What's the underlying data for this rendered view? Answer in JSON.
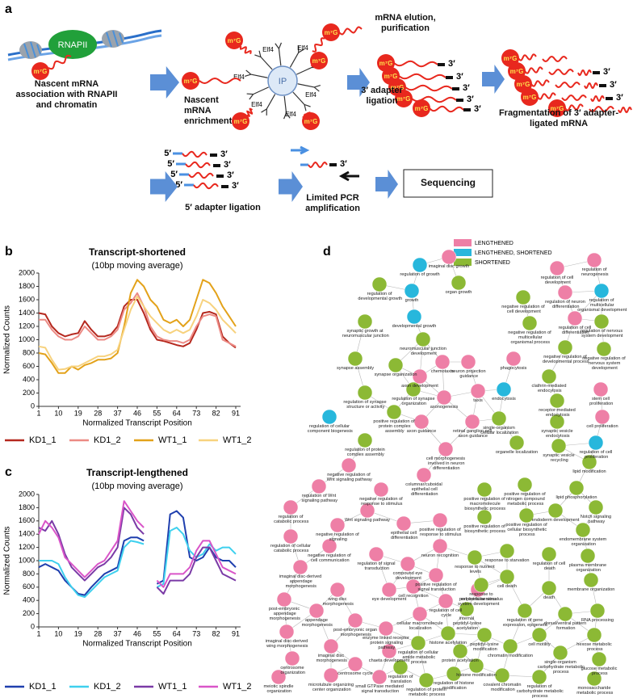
{
  "panel_labels": [
    "a",
    "b",
    "c",
    "d"
  ],
  "diagram": {
    "polymerase": "RNAPII",
    "cap": "m⁷G",
    "ip": "IP",
    "antibody": "Elf4",
    "three_prime": "3′",
    "five_prime": "5′",
    "steps": [
      "Nascent mRNA association with RNAPII and chromatin",
      "Nascent mRNA enrichment",
      "mRNA elution, purification",
      "3′ adapter ligation",
      "Fragmentation of 3′ adapter-ligated mRNA",
      "5′ adapter ligation",
      "Limited PCR amplification",
      "Sequencing"
    ]
  },
  "chart_data": [
    {
      "type": "line",
      "title": "Transcript-shortened",
      "subtitle": "(10bp moving average)",
      "x_label": "Normalized Transcript Position",
      "y_label": "Normalized Counts",
      "x": [
        1,
        4,
        7,
        10,
        13,
        16,
        19,
        22,
        25,
        28,
        31,
        34,
        37,
        40,
        43,
        46,
        49,
        52,
        55,
        58,
        61,
        64,
        67,
        70,
        73,
        76,
        79,
        82,
        85,
        88,
        91
      ],
      "xlim": [
        1,
        91
      ],
      "xticks": [
        1,
        10,
        19,
        28,
        37,
        46,
        55,
        64,
        73,
        82,
        91
      ],
      "ylim": [
        0,
        2000
      ],
      "yticks": [
        0,
        200,
        400,
        600,
        800,
        1000,
        1200,
        1400,
        1600,
        1800,
        2000
      ],
      "series": [
        {
          "name": "KD1_1",
          "color": "#b5281e",
          "values": [
            1400,
            1380,
            1200,
            1100,
            1050,
            1080,
            1100,
            1280,
            1150,
            1050,
            1050,
            1080,
            1200,
            1500,
            1600,
            1600,
            1400,
            1150,
            1000,
            980,
            950,
            920,
            900,
            950,
            1150,
            1400,
            1420,
            1380,
            1050,
            950,
            880
          ]
        },
        {
          "name": "KD1_2",
          "color": "#ec8a84",
          "values": [
            1300,
            1300,
            1150,
            1050,
            1000,
            1000,
            1050,
            1200,
            1100,
            1000,
            1000,
            1050,
            1150,
            1450,
            1550,
            1700,
            1500,
            1200,
            1050,
            1000,
            980,
            980,
            950,
            1000,
            1200,
            1350,
            1380,
            1350,
            1000,
            950,
            900
          ]
        },
        {
          "name": "WT1_1",
          "color": "#e3a21a",
          "values": [
            800,
            780,
            650,
            500,
            500,
            600,
            550,
            620,
            650,
            700,
            700,
            720,
            800,
            1200,
            1700,
            1900,
            1800,
            1600,
            1500,
            1300,
            1250,
            1300,
            1200,
            1300,
            1600,
            1900,
            1850,
            1700,
            1500,
            1350,
            1200
          ]
        },
        {
          "name": "WT1_2",
          "color": "#f7d27e",
          "values": [
            900,
            880,
            700,
            550,
            560,
            600,
            600,
            650,
            700,
            750,
            750,
            780,
            850,
            1150,
            1450,
            1650,
            1500,
            1350,
            1250,
            1150,
            1100,
            1150,
            1100,
            1150,
            1350,
            1600,
            1550,
            1450,
            1300,
            1200,
            1100
          ]
        }
      ]
    },
    {
      "type": "line",
      "title": "Transcript-lengthened",
      "subtitle": "(10bp moving average)",
      "x_label": "Normalized Transcript Position",
      "y_label": "Normalized Counts",
      "x": [
        1,
        4,
        7,
        10,
        13,
        16,
        19,
        22,
        25,
        28,
        31,
        34,
        37,
        40,
        43,
        46,
        49,
        52,
        55,
        58,
        61,
        64,
        67,
        70,
        73,
        76,
        79,
        82,
        85,
        88,
        91
      ],
      "xlim": [
        1,
        91
      ],
      "xticks": [
        1,
        10,
        19,
        28,
        37,
        46,
        55,
        64,
        73,
        82,
        91
      ],
      "ylim": [
        0,
        2000
      ],
      "yticks": [
        0,
        200,
        400,
        600,
        800,
        1000,
        1200,
        1400,
        1600,
        1800,
        2000
      ],
      "series": [
        {
          "name": "KD1_1",
          "color": "#1f3fae",
          "values": [
            900,
            950,
            900,
            850,
            700,
            600,
            500,
            480,
            600,
            700,
            800,
            850,
            900,
            1300,
            1350,
            1350,
            1300,
            null,
            650,
            700,
            1700,
            1750,
            1650,
            1050,
            1000,
            1050,
            1200,
            1050,
            1000,
            1000,
            900
          ]
        },
        {
          "name": "KD1_2",
          "color": "#3ed0ee",
          "values": [
            1000,
            1000,
            1000,
            950,
            750,
            600,
            480,
            450,
            550,
            650,
            750,
            800,
            850,
            1200,
            1300,
            1280,
            1250,
            null,
            600,
            650,
            1450,
            1500,
            1400,
            1150,
            1050,
            1100,
            1250,
            1150,
            1200,
            1200,
            1100
          ]
        },
        {
          "name": "WT1_1",
          "color": "#7a3aa6",
          "values": [
            1500,
            1450,
            1600,
            1400,
            1100,
            900,
            800,
            700,
            800,
            900,
            950,
            1050,
            1200,
            1800,
            1700,
            1500,
            1400,
            null,
            600,
            500,
            700,
            700,
            700,
            800,
            1050,
            1200,
            1200,
            1000,
            800,
            750,
            700
          ]
        },
        {
          "name": "WT1_2",
          "color": "#d955c8",
          "values": [
            1400,
            1600,
            1500,
            1350,
            1050,
            950,
            850,
            750,
            850,
            950,
            1000,
            1150,
            1300,
            1900,
            1750,
            1600,
            1500,
            null,
            700,
            600,
            800,
            800,
            800,
            900,
            1150,
            1300,
            1300,
            1100,
            900,
            850,
            800
          ]
        }
      ]
    }
  ],
  "network": {
    "legend": [
      {
        "name": "LENGTHENED",
        "color": "#ee7fa6"
      },
      {
        "name": "LENGTHENED, SHORTENED",
        "color": "#27b7dc"
      },
      {
        "name": "SHORTENED",
        "color": "#8cb935"
      }
    ],
    "nodes": [
      {
        "label": "regulation of growth",
        "category": "LENGTHENED, SHORTENED"
      },
      {
        "label": "imaginal disc growth",
        "category": "LENGTHENED"
      },
      {
        "label": "growth",
        "category": "LENGTHENED, SHORTENED"
      },
      {
        "label": "regulation of developmental growth",
        "category": "SHORTENED"
      },
      {
        "label": "organ growth",
        "category": "SHORTENED"
      },
      {
        "label": "developmental growth",
        "category": "LENGTHENED, SHORTENED"
      },
      {
        "label": "synaptic growth at neuromuscular junction",
        "category": "SHORTENED"
      },
      {
        "label": "neuromuscular junction development",
        "category": "SHORTENED"
      },
      {
        "label": "synapse assembly",
        "category": "SHORTENED"
      },
      {
        "label": "synapse organization",
        "category": "SHORTENED"
      },
      {
        "label": "regulation of synapse structure or activity",
        "category": "SHORTENED"
      },
      {
        "label": "regulation of synapse organization",
        "category": "SHORTENED"
      },
      {
        "label": "regulation of neurogenesis",
        "category": "LENGTHENED"
      },
      {
        "label": "regulation of cell development",
        "category": "LENGTHENED"
      },
      {
        "label": "regulation of neuron differentiation",
        "category": "LENGTHENED"
      },
      {
        "label": "regulation of multicellular organismal development",
        "category": "LENGTHENED, SHORTENED"
      },
      {
        "label": "negative regulation of cell development",
        "category": "SHORTENED"
      },
      {
        "label": "regulation of cell differentiation",
        "category": "LENGTHENED"
      },
      {
        "label": "negative regulation of multicellular organismal process",
        "category": "SHORTENED"
      },
      {
        "label": "regulation of nervous system development",
        "category": "SHORTENED"
      },
      {
        "label": "negative regulation of developmental process",
        "category": "SHORTENED"
      },
      {
        "label": "negative regulation of nervous system development",
        "category": "SHORTENED"
      },
      {
        "label": "chemotaxis",
        "category": "LENGTHENED"
      },
      {
        "label": "neuron projection guidance",
        "category": "LENGTHENED"
      },
      {
        "label": "axon development",
        "category": "LENGTHENED"
      },
      {
        "label": "phagocytosis",
        "category": "LENGTHENED"
      },
      {
        "label": "axonogenesis",
        "category": "LENGTHENED"
      },
      {
        "label": "taxis",
        "category": "LENGTHENED"
      },
      {
        "label": "positive regulation of protein complex assembly",
        "category": "SHORTENED"
      },
      {
        "label": "regulation of cellular component biogenesis",
        "category": "LENGTHENED, SHORTENED"
      },
      {
        "label": "axon guidance",
        "category": "LENGTHENED"
      },
      {
        "label": "retinal ganglion cell axon guidance",
        "category": "LENGTHENED"
      },
      {
        "label": "regulation of protein complex assembly",
        "category": "SHORTENED"
      },
      {
        "label": "cell morphogenesis involved in neuron differentiation",
        "category": "LENGTHENED"
      },
      {
        "label": "endocytosis",
        "category": "LENGTHENED, SHORTENED"
      },
      {
        "label": "clathrin-mediated endocytosis",
        "category": "SHORTENED"
      },
      {
        "label": "receptor-mediated endocytosis",
        "category": "SHORTENED"
      },
      {
        "label": "single-organism cellular localization",
        "category": "SHORTENED"
      },
      {
        "label": "synaptic vesicle endocytosis",
        "category": "SHORTENED"
      },
      {
        "label": "stem cell proliferation",
        "category": "LENGTHENED"
      },
      {
        "label": "cell proliferation",
        "category": "LENGTHENED"
      },
      {
        "label": "organelle localization",
        "category": "SHORTENED"
      },
      {
        "label": "synaptic vesicle recycling",
        "category": "SHORTENED"
      },
      {
        "label": "regulation of cell proliferation",
        "category": "LENGTHENED, SHORTENED"
      },
      {
        "label": "lipid modification",
        "category": "SHORTENED"
      },
      {
        "label": "lipid phosphorylation",
        "category": "SHORTENED"
      },
      {
        "label": "negative regulation of Wnt signaling pathway",
        "category": "LENGTHENED"
      },
      {
        "label": "regulation of Wnt signaling pathway",
        "category": "LENGTHENED"
      },
      {
        "label": "negative regulation of response to stimulus",
        "category": "LENGTHENED"
      },
      {
        "label": "columnar/cuboidal epithelial cell differentiation",
        "category": "LENGTHENED"
      },
      {
        "label": "Wnt signaling pathway",
        "category": "LENGTHENED"
      },
      {
        "label": "negative regulation of signaling",
        "category": "LENGTHENED"
      },
      {
        "label": "negative regulation of cell communication",
        "category": "LENGTHENED"
      },
      {
        "label": "regulation of catabolic process",
        "category": "LENGTHENED"
      },
      {
        "label": "regulation of cellular catabolic process",
        "category": "LENGTHENED"
      },
      {
        "label": "epithelial cell differentiation",
        "category": "LENGTHENED"
      },
      {
        "label": "positive regulation of response to stimulus",
        "category": "LENGTHENED"
      },
      {
        "label": "regulation of signal transduction",
        "category": "LENGTHENED"
      },
      {
        "label": "neuron recognition",
        "category": "LENGTHENED"
      },
      {
        "label": "compound eye development",
        "category": "LENGTHENED"
      },
      {
        "label": "positive regulation of signal transduction",
        "category": "LENGTHENED"
      },
      {
        "label": "imaginal disc-derived appendage morphogenesis",
        "category": "LENGTHENED"
      },
      {
        "label": "post-embryonic appendage morphogenesis",
        "category": "LENGTHENED"
      },
      {
        "label": "wing disc morphogenesis",
        "category": "LENGTHENED"
      },
      {
        "label": "appendage morphogenesis",
        "category": "LENGTHENED"
      },
      {
        "label": "eye development",
        "category": "LENGTHENED"
      },
      {
        "label": "cell recognition",
        "category": "LENGTHENED"
      },
      {
        "label": "imaginal disc-derived wing morphogenesis",
        "category": "LENGTHENED"
      },
      {
        "label": "post-embryonic organ morphogenesis",
        "category": "LENGTHENED"
      },
      {
        "label": "regulation of cell cycle",
        "category": "LENGTHENED"
      },
      {
        "label": "peripheral nervous system development",
        "category": "LENGTHENED"
      },
      {
        "label": "enzyme linked receptor protein signaling pathway",
        "category": "LENGTHENED"
      },
      {
        "label": "cellular macromolecule localization",
        "category": "LENGTHENED"
      },
      {
        "label": "imaginal disc morphogenesis",
        "category": "LENGTHENED"
      },
      {
        "label": "chaeta development",
        "category": "LENGTHENED"
      },
      {
        "label": "centrosome organization",
        "category": "LENGTHENED"
      },
      {
        "label": "centrosome cycle",
        "category": "LENGTHENED"
      },
      {
        "label": "meiotic spindle organization",
        "category": "LENGTHENED"
      },
      {
        "label": "microtubule organizing center organization",
        "category": "LENGTHENED"
      },
      {
        "label": "small GTPase mediated signal transduction",
        "category": "LENGTHENED"
      },
      {
        "label": "regulation of cellular amide metabolic process",
        "category": "SHORTENED"
      },
      {
        "label": "regulation of translation",
        "category": "SHORTENED"
      },
      {
        "label": "regulation of protein metabolic process",
        "category": "SHORTENED"
      },
      {
        "label": "positive regulation of macromolecule biosynthetic process",
        "category": "SHORTENED"
      },
      {
        "label": "positive regulation of nitrogen compound metabolic process",
        "category": "SHORTENED"
      },
      {
        "label": "positive regulation of biosynthetic process",
        "category": "SHORTENED"
      },
      {
        "label": "positive regulation of cellular biosynthetic process",
        "category": "SHORTENED"
      },
      {
        "label": "endoderm development",
        "category": "SHORTENED"
      },
      {
        "label": "Notch signaling pathway",
        "category": "SHORTENED"
      },
      {
        "label": "endomembrane system organization",
        "category": "SHORTENED"
      },
      {
        "label": "response to starvation",
        "category": "SHORTENED"
      },
      {
        "label": "response to nutrient levels",
        "category": "SHORTENED"
      },
      {
        "label": "regulation of cell death",
        "category": "SHORTENED"
      },
      {
        "label": "plasma membrane organization",
        "category": "SHORTENED"
      },
      {
        "label": "cell death",
        "category": "SHORTENED"
      },
      {
        "label": "response to extracellular stimulus",
        "category": "SHORTENED"
      },
      {
        "label": "membrane organization",
        "category": "SHORTENED"
      },
      {
        "label": "death",
        "category": "SHORTENED"
      },
      {
        "label": "regulation of gene expression, epigenetic",
        "category": "SHORTENED"
      },
      {
        "label": "dorsal/ventral pattern formation",
        "category": "SHORTENED"
      },
      {
        "label": "RNA processing",
        "category": "SHORTENED"
      },
      {
        "label": "internal peptidyl-lysine acetylation",
        "category": "SHORTENED"
      },
      {
        "label": "histone acetylation",
        "category": "SHORTENED"
      },
      {
        "label": "peptidyl-lysine modification",
        "category": "SHORTENED"
      },
      {
        "label": "protein acetylation",
        "category": "SHORTENED"
      },
      {
        "label": "chromatin modification",
        "category": "SHORTENED"
      },
      {
        "label": "cell motility",
        "category": "SHORTENED"
      },
      {
        "label": "hexose metabolic process",
        "category": "SHORTENED"
      },
      {
        "label": "regulation of histone modification",
        "category": "SHORTENED"
      },
      {
        "label": "histone modification",
        "category": "SHORTENED"
      },
      {
        "label": "covalent chromatin modification",
        "category": "SHORTENED"
      },
      {
        "label": "single-organism carbohydrate metabolic process",
        "category": "SHORTENED"
      },
      {
        "label": "glucose metabolic process",
        "category": "SHORTENED"
      },
      {
        "label": "regulation of carbohydrate metabolic process",
        "category": "SHORTENED"
      },
      {
        "label": "monosaccharide metabolic process",
        "category": "SHORTENED"
      }
    ]
  }
}
